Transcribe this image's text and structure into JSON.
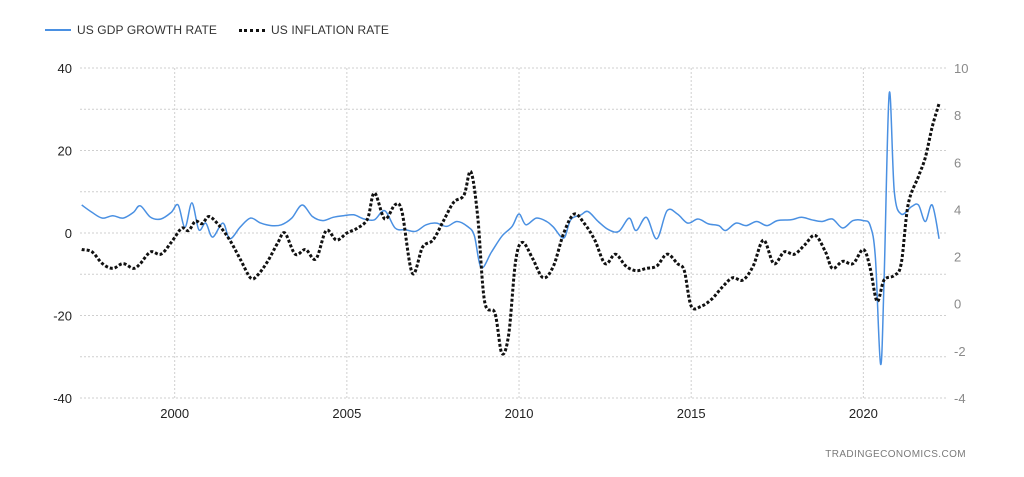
{
  "legend": {
    "gdp_label": "US GDP GROWTH RATE",
    "inflation_label": "US INFLATION RATE"
  },
  "credit": "TRADINGECONOMICS.COM",
  "colors": {
    "gdp": "#4a90e2",
    "inflation": "#111111",
    "grid": "#cfcfcf"
  },
  "chart_data": {
    "type": "line",
    "title": "",
    "grid": true,
    "legend_position": "top-left",
    "x_ticks": [
      "2000",
      "2005",
      "2010",
      "2015",
      "2020"
    ],
    "x_tick_values": [
      2000,
      2005,
      2010,
      2015,
      2020
    ],
    "xlim": [
      1997.25,
      2022.4
    ],
    "y_left": {
      "ticks": [
        "40",
        "20",
        "0",
        "-20",
        "-40"
      ],
      "tick_values": [
        40,
        20,
        0,
        -20,
        -40
      ],
      "ylim": [
        -40,
        40
      ]
    },
    "y_right": {
      "ticks": [
        "10",
        "8",
        "6",
        "4",
        "2",
        "0",
        "-2",
        "-4"
      ],
      "tick_values": [
        10,
        8,
        6,
        4,
        2,
        0,
        -2,
        -4
      ],
      "ylim": [
        -4,
        10
      ]
    },
    "series": [
      {
        "name": "US GDP GROWTH RATE",
        "axis": "left",
        "style": "solid",
        "points": [
          [
            1997.3,
            6.8
          ],
          [
            1997.6,
            5.0
          ],
          [
            1997.9,
            3.6
          ],
          [
            1998.2,
            4.2
          ],
          [
            1998.5,
            3.6
          ],
          [
            1998.8,
            5.0
          ],
          [
            1999.0,
            6.6
          ],
          [
            1999.3,
            3.8
          ],
          [
            1999.6,
            3.4
          ],
          [
            1999.9,
            5.0
          ],
          [
            2000.1,
            6.8
          ],
          [
            2000.3,
            1.4
          ],
          [
            2000.5,
            7.3
          ],
          [
            2000.7,
            0.8
          ],
          [
            2000.9,
            2.4
          ],
          [
            2001.1,
            -1.0
          ],
          [
            2001.4,
            2.4
          ],
          [
            2001.6,
            -1.4
          ],
          [
            2001.9,
            1.4
          ],
          [
            2002.2,
            3.6
          ],
          [
            2002.5,
            2.4
          ],
          [
            2002.8,
            1.8
          ],
          [
            2003.1,
            2.0
          ],
          [
            2003.4,
            3.6
          ],
          [
            2003.7,
            6.8
          ],
          [
            2004.0,
            4.0
          ],
          [
            2004.3,
            3.0
          ],
          [
            2004.6,
            3.8
          ],
          [
            2004.9,
            4.2
          ],
          [
            2005.2,
            4.4
          ],
          [
            2005.5,
            3.4
          ],
          [
            2005.8,
            3.2
          ],
          [
            2006.1,
            5.4
          ],
          [
            2006.4,
            1.2
          ],
          [
            2006.7,
            0.8
          ],
          [
            2007.0,
            0.4
          ],
          [
            2007.3,
            2.0
          ],
          [
            2007.6,
            2.4
          ],
          [
            2007.9,
            1.6
          ],
          [
            2008.2,
            2.8
          ],
          [
            2008.5,
            1.6
          ],
          [
            2008.7,
            -0.6
          ],
          [
            2008.9,
            -8.4
          ],
          [
            2009.2,
            -4.6
          ],
          [
            2009.5,
            -0.8
          ],
          [
            2009.8,
            1.6
          ],
          [
            2010.0,
            4.6
          ],
          [
            2010.2,
            2.0
          ],
          [
            2010.5,
            3.6
          ],
          [
            2010.8,
            2.8
          ],
          [
            2011.0,
            1.4
          ],
          [
            2011.3,
            -1.2
          ],
          [
            2011.5,
            3.2
          ],
          [
            2011.8,
            4.4
          ],
          [
            2012.0,
            5.2
          ],
          [
            2012.3,
            2.8
          ],
          [
            2012.6,
            0.8
          ],
          [
            2012.9,
            0.4
          ],
          [
            2013.2,
            3.6
          ],
          [
            2013.4,
            0.6
          ],
          [
            2013.7,
            3.8
          ],
          [
            2014.0,
            -1.4
          ],
          [
            2014.3,
            5.4
          ],
          [
            2014.6,
            4.6
          ],
          [
            2014.9,
            2.4
          ],
          [
            2015.2,
            3.4
          ],
          [
            2015.5,
            2.2
          ],
          [
            2015.8,
            1.8
          ],
          [
            2016.0,
            0.6
          ],
          [
            2016.3,
            2.4
          ],
          [
            2016.6,
            1.8
          ],
          [
            2016.9,
            2.8
          ],
          [
            2017.2,
            1.8
          ],
          [
            2017.5,
            3.0
          ],
          [
            2017.9,
            3.2
          ],
          [
            2018.2,
            3.8
          ],
          [
            2018.5,
            3.2
          ],
          [
            2018.8,
            2.8
          ],
          [
            2019.1,
            3.4
          ],
          [
            2019.4,
            1.2
          ],
          [
            2019.7,
            3.0
          ],
          [
            2020.0,
            3.0
          ],
          [
            2020.2,
            1.8
          ],
          [
            2020.35,
            -6.0
          ],
          [
            2020.5,
            -31.8
          ],
          [
            2020.6,
            -12.0
          ],
          [
            2020.75,
            33.8
          ],
          [
            2020.9,
            10.0
          ],
          [
            2021.1,
            4.6
          ],
          [
            2021.4,
            6.4
          ],
          [
            2021.6,
            6.8
          ],
          [
            2021.8,
            2.8
          ],
          [
            2022.0,
            6.8
          ],
          [
            2022.2,
            -1.4
          ]
        ]
      },
      {
        "name": "US INFLATION RATE",
        "axis": "right",
        "style": "dotted",
        "points": [
          [
            1997.3,
            2.3
          ],
          [
            1997.6,
            2.2
          ],
          [
            1997.9,
            1.7
          ],
          [
            1998.2,
            1.5
          ],
          [
            1998.5,
            1.7
          ],
          [
            1998.8,
            1.5
          ],
          [
            1999.0,
            1.7
          ],
          [
            1999.3,
            2.2
          ],
          [
            1999.6,
            2.1
          ],
          [
            1999.9,
            2.6
          ],
          [
            2000.2,
            3.2
          ],
          [
            2000.4,
            3.1
          ],
          [
            2000.6,
            3.5
          ],
          [
            2000.8,
            3.4
          ],
          [
            2001.0,
            3.7
          ],
          [
            2001.3,
            3.3
          ],
          [
            2001.6,
            2.7
          ],
          [
            2001.9,
            1.9
          ],
          [
            2002.2,
            1.1
          ],
          [
            2002.4,
            1.2
          ],
          [
            2002.7,
            1.8
          ],
          [
            2003.0,
            2.6
          ],
          [
            2003.2,
            3.0
          ],
          [
            2003.5,
            2.1
          ],
          [
            2003.8,
            2.3
          ],
          [
            2004.1,
            1.9
          ],
          [
            2004.4,
            3.1
          ],
          [
            2004.7,
            2.7
          ],
          [
            2005.0,
            3.0
          ],
          [
            2005.3,
            3.2
          ],
          [
            2005.6,
            3.6
          ],
          [
            2005.8,
            4.7
          ],
          [
            2006.1,
            3.6
          ],
          [
            2006.4,
            4.2
          ],
          [
            2006.6,
            3.9
          ],
          [
            2006.9,
            1.3
          ],
          [
            2007.2,
            2.4
          ],
          [
            2007.5,
            2.7
          ],
          [
            2007.8,
            3.5
          ],
          [
            2008.1,
            4.3
          ],
          [
            2008.4,
            4.6
          ],
          [
            2008.6,
            5.6
          ],
          [
            2008.8,
            3.7
          ],
          [
            2009.0,
            0.1
          ],
          [
            2009.3,
            -0.4
          ],
          [
            2009.5,
            -2.1
          ],
          [
            2009.7,
            -1.3
          ],
          [
            2009.9,
            1.8
          ],
          [
            2010.1,
            2.6
          ],
          [
            2010.4,
            1.9
          ],
          [
            2010.7,
            1.1
          ],
          [
            2011.0,
            1.6
          ],
          [
            2011.3,
            3.0
          ],
          [
            2011.6,
            3.8
          ],
          [
            2011.9,
            3.4
          ],
          [
            2012.2,
            2.7
          ],
          [
            2012.5,
            1.7
          ],
          [
            2012.8,
            2.1
          ],
          [
            2013.1,
            1.6
          ],
          [
            2013.4,
            1.4
          ],
          [
            2013.7,
            1.5
          ],
          [
            2014.0,
            1.6
          ],
          [
            2014.3,
            2.1
          ],
          [
            2014.6,
            1.7
          ],
          [
            2014.8,
            1.4
          ],
          [
            2015.0,
            -0.1
          ],
          [
            2015.3,
            -0.1
          ],
          [
            2015.6,
            0.2
          ],
          [
            2015.9,
            0.7
          ],
          [
            2016.2,
            1.1
          ],
          [
            2016.5,
            1.0
          ],
          [
            2016.8,
            1.6
          ],
          [
            2017.1,
            2.7
          ],
          [
            2017.4,
            1.7
          ],
          [
            2017.7,
            2.2
          ],
          [
            2018.0,
            2.1
          ],
          [
            2018.3,
            2.5
          ],
          [
            2018.6,
            2.9
          ],
          [
            2018.9,
            2.2
          ],
          [
            2019.1,
            1.5
          ],
          [
            2019.4,
            1.8
          ],
          [
            2019.7,
            1.7
          ],
          [
            2020.0,
            2.3
          ],
          [
            2020.2,
            1.5
          ],
          [
            2020.4,
            0.1
          ],
          [
            2020.6,
            1.0
          ],
          [
            2020.9,
            1.2
          ],
          [
            2021.1,
            1.7
          ],
          [
            2021.3,
            4.2
          ],
          [
            2021.6,
            5.4
          ],
          [
            2021.8,
            6.2
          ],
          [
            2022.0,
            7.5
          ],
          [
            2022.2,
            8.5
          ]
        ]
      }
    ]
  }
}
